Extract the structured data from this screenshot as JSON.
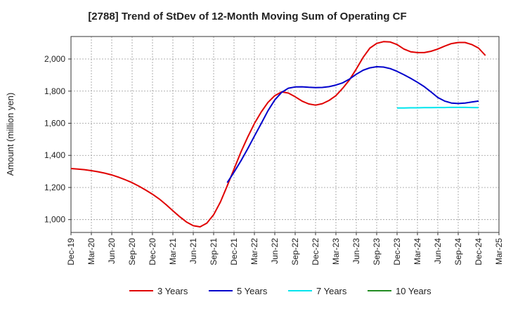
{
  "chart_data": {
    "type": "line",
    "title": "[2788]  Trend of StDev of 12-Month Moving Sum of Operating CF",
    "ylabel": "Amount (million yen)",
    "xlabel": "",
    "ylim": [
      920,
      2140
    ],
    "y_ticks": [
      1000,
      1200,
      1400,
      1600,
      1800,
      2000
    ],
    "y_tick_labels": [
      "1,000",
      "1,200",
      "1,400",
      "1,600",
      "1,800",
      "2,000"
    ],
    "x_ticks": [
      "Dec-19",
      "Mar-20",
      "Jun-20",
      "Sep-20",
      "Dec-20",
      "Mar-21",
      "Jun-21",
      "Sep-21",
      "Dec-21",
      "Mar-22",
      "Jun-22",
      "Sep-22",
      "Dec-22",
      "Mar-23",
      "Jun-23",
      "Sep-23",
      "Dec-23",
      "Mar-24",
      "Jun-24",
      "Sep-24",
      "Dec-24",
      "Mar-25"
    ],
    "grid": true,
    "legend_position": "bottom",
    "series": [
      {
        "name": "3 Years",
        "color": "#e00000",
        "start": "Dec-19",
        "values": [
          1318,
          1315,
          1311,
          1305,
          1298,
          1289,
          1278,
          1264,
          1248,
          1230,
          1208,
          1184,
          1158,
          1128,
          1093,
          1055,
          1018,
          985,
          962,
          955,
          978,
          1030,
          1110,
          1210,
          1315,
          1420,
          1512,
          1598,
          1670,
          1730,
          1772,
          1795,
          1788,
          1765,
          1738,
          1720,
          1713,
          1722,
          1742,
          1772,
          1818,
          1870,
          1938,
          2010,
          2068,
          2097,
          2108,
          2106,
          2090,
          2062,
          2045,
          2040,
          2040,
          2048,
          2062,
          2080,
          2096,
          2103,
          2103,
          2090,
          2068,
          2022
        ]
      },
      {
        "name": "5 Years",
        "color": "#0000cc",
        "start": "Nov-21",
        "values": [
          1230,
          1295,
          1365,
          1440,
          1520,
          1598,
          1678,
          1745,
          1792,
          1818,
          1826,
          1827,
          1824,
          1822,
          1823,
          1828,
          1838,
          1852,
          1875,
          1905,
          1930,
          1945,
          1952,
          1950,
          1940,
          1923,
          1902,
          1880,
          1855,
          1828,
          1795,
          1760,
          1738,
          1726,
          1723,
          1726,
          1732,
          1738
        ]
      },
      {
        "name": "7 Years",
        "color": "#00e5ee",
        "start": "Dec-23",
        "values": [
          1695,
          1695,
          1696,
          1696,
          1697,
          1697,
          1698,
          1698,
          1699,
          1699,
          1699,
          1698,
          1697
        ]
      },
      {
        "name": "10 Years",
        "color": "#228b22",
        "start": "Dec-24",
        "values": []
      }
    ]
  }
}
